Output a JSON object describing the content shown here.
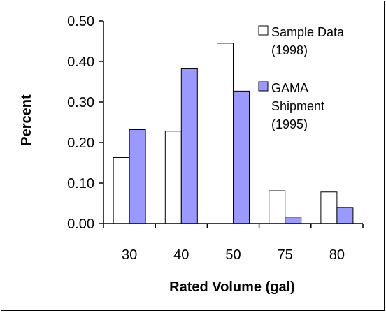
{
  "chart_data": {
    "type": "bar",
    "categories": [
      "30",
      "40",
      "50",
      "75",
      "80"
    ],
    "series": [
      {
        "name": "Sample Data (1998)",
        "name_lines": [
          "Sample Data",
          "(1998)"
        ],
        "values": [
          0.163,
          0.228,
          0.445,
          0.081,
          0.078
        ],
        "color": "#ffffff"
      },
      {
        "name": "GAMA Shipment (1995)",
        "name_lines": [
          "GAMA",
          "Shipment",
          "(1995)"
        ],
        "values": [
          0.232,
          0.382,
          0.327,
          0.016,
          0.04
        ],
        "color": "#9999ff"
      }
    ],
    "xlabel": "Rated Volume (gal)",
    "ylabel": "Percent",
    "ylim": [
      0,
      0.5
    ],
    "yticks": [
      "0.00",
      "0.10",
      "0.20",
      "0.30",
      "0.40",
      "0.50"
    ],
    "grid": false,
    "legend_position": "top-right"
  }
}
